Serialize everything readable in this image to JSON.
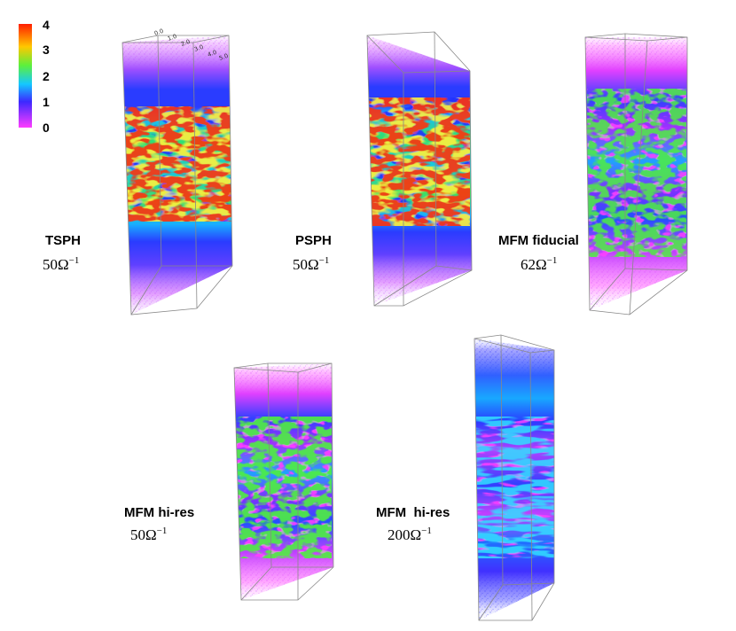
{
  "colorbar": {
    "ticks": [
      "4",
      "3",
      "2",
      "1",
      "0"
    ],
    "colors": [
      "#ff1e00",
      "#ffc800",
      "#5cf03c",
      "#14c8ff",
      "#3c28ff",
      "#a03cff",
      "#ff3cff"
    ]
  },
  "axis_ticks": [
    "0.0",
    "1.0",
    "2.0",
    "3.0",
    "4.0",
    "5.0"
  ],
  "panels": [
    {
      "title": "TSPH",
      "rate_value": "50Ω",
      "rate_exp": "−1",
      "turbulence": "strong"
    },
    {
      "title": "PSPH",
      "rate_value": "50Ω",
      "rate_exp": "−1",
      "turbulence": "strong"
    },
    {
      "title": "MFM fiducial",
      "rate_value": "62Ω",
      "rate_exp": "−1",
      "turbulence": "medium"
    },
    {
      "title": "MFM hi-res",
      "rate_value": "50Ω",
      "rate_exp": "−1",
      "turbulence": "medium"
    },
    {
      "title": "MFM  hi-res",
      "rate_value": "200Ω",
      "rate_exp": "−1",
      "turbulence": "weak"
    }
  ]
}
